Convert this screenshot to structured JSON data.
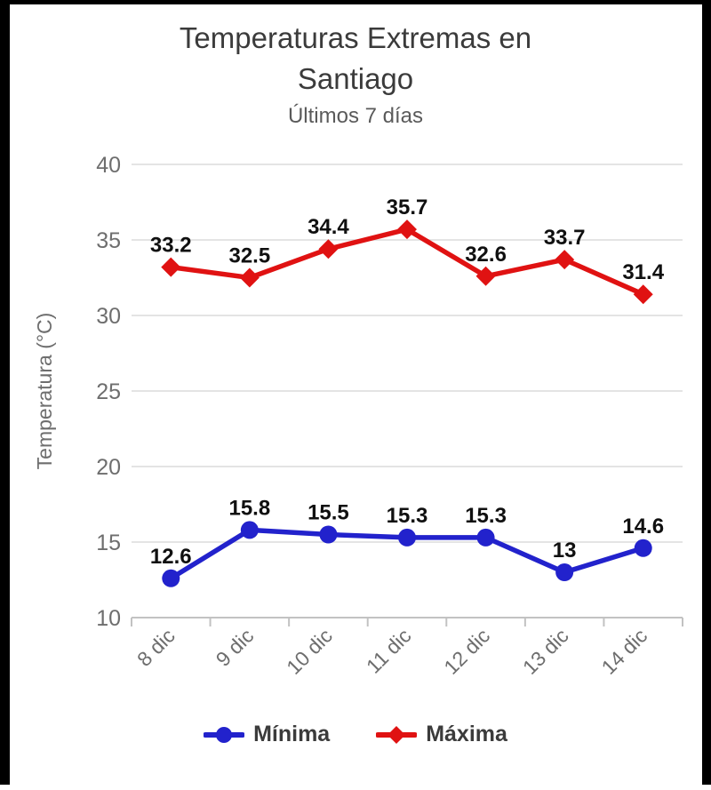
{
  "chart_data": {
    "type": "line",
    "title": "Temperaturas Extremas en Santiago",
    "subtitle": "Últimos 7 días",
    "ylabel": "Temperatura (°C)",
    "categories": [
      "8 dic",
      "9 dic",
      "10 dic",
      "11 dic",
      "12 dic",
      "13 dic",
      "14 dic"
    ],
    "series": [
      {
        "name": "Mínima",
        "color": "#2222cc",
        "marker": "circle",
        "values": [
          12.6,
          15.8,
          15.5,
          15.3,
          15.3,
          13,
          14.6
        ]
      },
      {
        "name": "Máxima",
        "color": "#e01212",
        "marker": "diamond",
        "values": [
          33.2,
          32.5,
          34.4,
          35.7,
          32.6,
          33.7,
          31.4
        ]
      }
    ],
    "ylim": [
      10,
      40
    ],
    "ytick_step": 5,
    "grid": true,
    "legend_position": "bottom"
  },
  "colors": {
    "frame": "#000000",
    "background": "#ffffff",
    "gridline": "#dcdcdc",
    "axis": "#c2c2c2",
    "axis_text": "#6e6e6e",
    "title_text": "#3b3b3b",
    "data_label_text": "#101010"
  }
}
